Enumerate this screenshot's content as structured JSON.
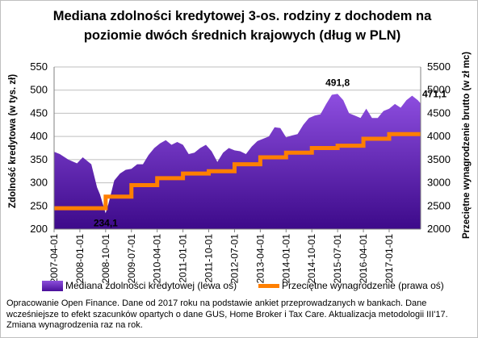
{
  "title": "Mediana zdolności kredytowej 3-os. rodziny z dochodem na poziomie dwóch średnich krajowych (dług w PLN)",
  "chart_data": {
    "type": "area",
    "title": "Mediana zdolności kredytowej 3-os. rodziny z dochodem na poziomie dwóch średnich krajowych (dług w PLN)",
    "ylabel_left": "Zdolność kredytowa (w tys. zł)",
    "ylabel_right": "Przeciętne wynagrodzenie brutto (w zł mc)",
    "ylim_left": [
      200,
      550
    ],
    "ylim_right": [
      2000,
      5500
    ],
    "yticks_left": [
      "200",
      "250",
      "300",
      "350",
      "400",
      "450",
      "500",
      "550"
    ],
    "yticks_right": [
      "2000",
      "2500",
      "3000",
      "3500",
      "4000",
      "4500",
      "5000",
      "5500"
    ],
    "x_tick_labels": [
      "2007-04-01",
      "2008-01-01",
      "2008-10-01",
      "2009-07-01",
      "2010-04-01",
      "2011-01-01",
      "2011-10-01",
      "2012-07-01",
      "2013-04-01",
      "2014-01-01",
      "2014-10-01",
      "2015-07-01",
      "2016-04-01",
      "2017-01-01"
    ],
    "x_start": "2007-04",
    "x_end": "2017-12",
    "grid": true,
    "legend_position": "bottom",
    "series": [
      {
        "name": "Mediana zdolności kredytowej (lewa oś)",
        "axis": "left",
        "type": "area",
        "color": "#5a1ab0",
        "x": [
          "2007-04",
          "2007-06",
          "2007-09",
          "2007-12",
          "2008-02",
          "2008-05",
          "2008-07",
          "2008-08",
          "2008-10",
          "2008-11",
          "2009-01",
          "2009-03",
          "2009-05",
          "2009-07",
          "2009-09",
          "2009-11",
          "2010-01",
          "2010-03",
          "2010-05",
          "2010-07",
          "2010-09",
          "2010-11",
          "2011-01",
          "2011-03",
          "2011-05",
          "2011-07",
          "2011-09",
          "2011-11",
          "2012-01",
          "2012-03",
          "2012-05",
          "2012-07",
          "2012-09",
          "2012-11",
          "2013-01",
          "2013-03",
          "2013-05",
          "2013-07",
          "2013-09",
          "2013-11",
          "2014-01",
          "2014-03",
          "2014-05",
          "2014-07",
          "2014-09",
          "2014-11",
          "2015-01",
          "2015-03",
          "2015-05",
          "2015-07",
          "2015-09",
          "2015-11",
          "2016-01",
          "2016-03",
          "2016-05",
          "2016-07",
          "2016-09",
          "2016-11",
          "2017-01",
          "2017-03",
          "2017-05",
          "2017-07",
          "2017-09",
          "2017-11",
          "2017-12"
        ],
        "values": [
          367,
          362,
          350,
          342,
          355,
          340,
          290,
          275,
          234.1,
          255,
          305,
          320,
          328,
          330,
          340,
          340,
          360,
          375,
          385,
          392,
          382,
          388,
          382,
          362,
          365,
          375,
          382,
          368,
          345,
          365,
          375,
          370,
          368,
          362,
          378,
          390,
          395,
          400,
          420,
          418,
          398,
          402,
          405,
          425,
          440,
          445,
          448,
          470,
          490,
          491.8,
          478,
          450,
          445,
          440,
          460,
          440,
          440,
          455,
          460,
          470,
          462,
          478,
          488,
          478,
          471.1
        ]
      },
      {
        "name": "Przeciętne wynagrodzenie (prawa oś)",
        "axis": "right",
        "type": "step",
        "color": "#ff7f00",
        "x": [
          "2007-04",
          "2008-01",
          "2008-10",
          "2009-07",
          "2010-04",
          "2011-01",
          "2011-10",
          "2012-07",
          "2013-04",
          "2014-01",
          "2014-10",
          "2015-07",
          "2016-04",
          "2017-01",
          "2017-12"
        ],
        "values": [
          2450,
          2450,
          2700,
          2950,
          3100,
          3200,
          3250,
          3400,
          3550,
          3650,
          3750,
          3800,
          3950,
          4050,
          4050
        ]
      }
    ],
    "annotations": [
      {
        "text": "234,1",
        "x": "2008-10",
        "y": 234.1,
        "axis": "left"
      },
      {
        "text": "491,8",
        "x": "2015-07",
        "y": 491.8,
        "axis": "left"
      },
      {
        "text": "471,1",
        "x": "2017-12",
        "y": 471.1,
        "axis": "left"
      }
    ]
  },
  "legend": {
    "item1": "Mediana zdolności kredytowej (lewa oś)",
    "item2": "Przeciętne wynagrodzenie (prawa oś)"
  },
  "note": "Opracowanie Open Finance. Dane od 2017 roku na podstawie ankiet przeprowadzanych w bankach. Dane wcześniejsze to efekt szacunków opartych o dane GUS, Home Broker i Tax Care. Aktualizacja metodologii III'17. Zmiana wynagrodzenia raz na rok."
}
